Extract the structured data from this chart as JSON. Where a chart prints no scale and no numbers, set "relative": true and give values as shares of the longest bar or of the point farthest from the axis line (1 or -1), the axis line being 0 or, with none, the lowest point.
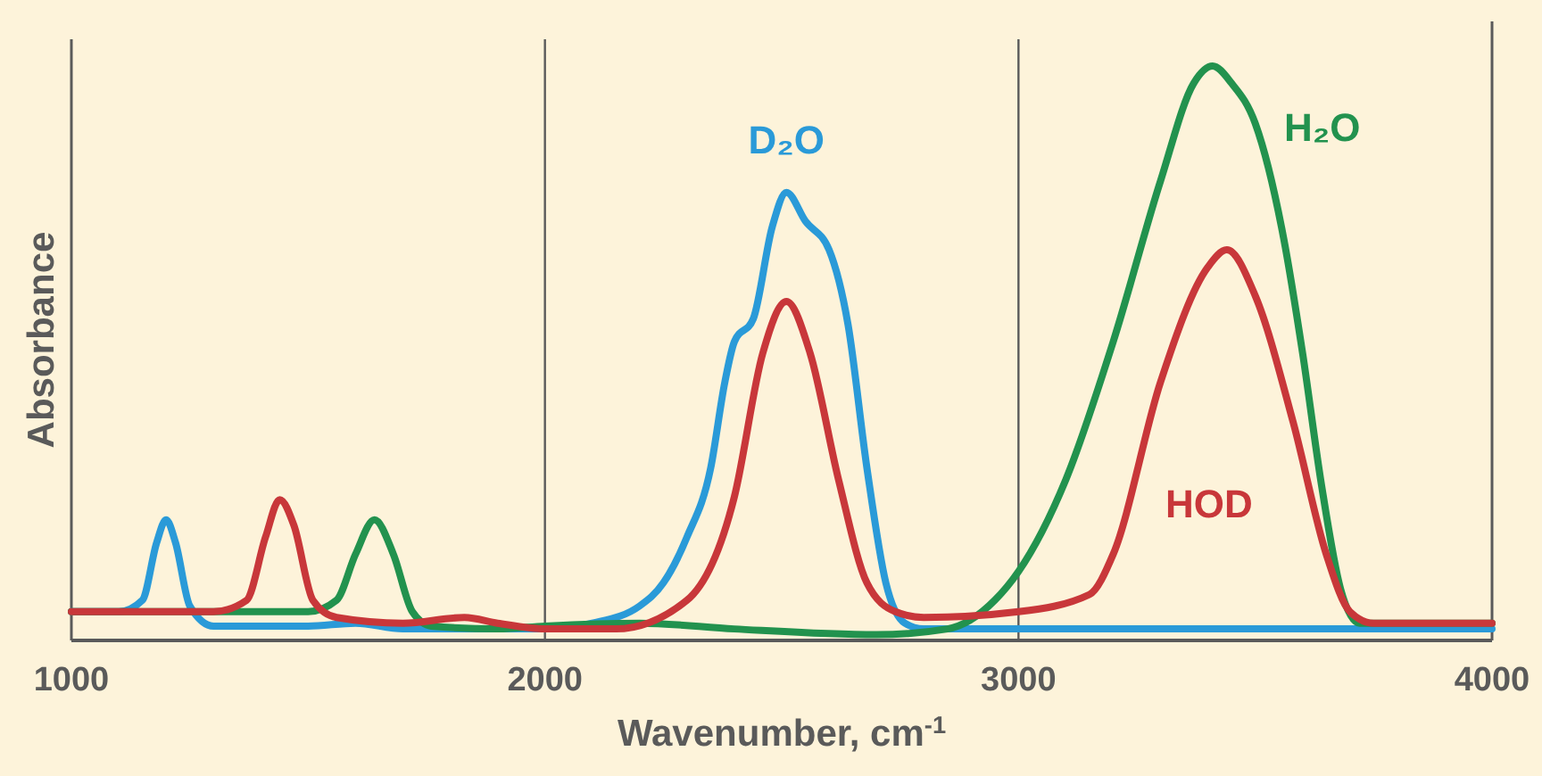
{
  "chart_data": {
    "type": "line",
    "xlabel": "Wavenumber, cm$^{-1}$",
    "ylabel": "Absorbance",
    "relative": true,
    "xlim": [
      1000,
      4000
    ],
    "xticks": [
      1000,
      2000,
      3000,
      4000
    ],
    "grid": "x",
    "series": [
      {
        "name": "D₂O",
        "color": "#2a9ad8",
        "x": [
          1000,
          1100,
          1150,
          1180,
          1200,
          1220,
          1250,
          1300,
          1500,
          1600,
          1700,
          1900,
          2000,
          2100,
          2200,
          2250,
          2300,
          2350,
          2380,
          2400,
          2440,
          2480,
          2510,
          2550,
          2600,
          2640,
          2680,
          2720,
          2760,
          2800,
          3000,
          4000
        ],
        "values": [
          0.05,
          0.05,
          0.07,
          0.17,
          0.21,
          0.17,
          0.06,
          0.025,
          0.025,
          0.03,
          0.02,
          0.02,
          0.02,
          0.03,
          0.06,
          0.1,
          0.18,
          0.3,
          0.45,
          0.52,
          0.56,
          0.72,
          0.78,
          0.73,
          0.68,
          0.55,
          0.3,
          0.1,
          0.03,
          0.02,
          0.02,
          0.02
        ]
      },
      {
        "name": "H₂O",
        "color": "#22924e",
        "x": [
          1000,
          1500,
          1560,
          1600,
          1640,
          1680,
          1720,
          1760,
          1900,
          2000,
          2200,
          2400,
          2700,
          2850,
          2950,
          3000,
          3100,
          3200,
          3300,
          3370,
          3410,
          3450,
          3500,
          3560,
          3600,
          3640,
          3680,
          3720,
          4000
        ],
        "values": [
          0.05,
          0.05,
          0.07,
          0.15,
          0.21,
          0.15,
          0.05,
          0.025,
          0.02,
          0.025,
          0.03,
          0.02,
          0.01,
          0.02,
          0.07,
          0.12,
          0.28,
          0.52,
          0.8,
          0.97,
          1,
          0.97,
          0.9,
          0.7,
          0.5,
          0.27,
          0.09,
          0.03,
          0.03
        ]
      },
      {
        "name": "HOD",
        "color": "#c8373a",
        "x": [
          1000,
          1300,
          1370,
          1410,
          1440,
          1470,
          1510,
          1560,
          1700,
          1830,
          1900,
          2000,
          2150,
          2300,
          2400,
          2460,
          2510,
          2560,
          2620,
          2680,
          2740,
          2800,
          3000,
          3150,
          3200,
          3300,
          3400,
          3440,
          3500,
          3580,
          3650,
          3700,
          3750,
          4000
        ],
        "values": [
          0.05,
          0.05,
          0.07,
          0.18,
          0.245,
          0.2,
          0.07,
          0.04,
          0.03,
          0.04,
          0.03,
          0.02,
          0.02,
          0.07,
          0.25,
          0.5,
          0.59,
          0.5,
          0.28,
          0.1,
          0.05,
          0.04,
          0.05,
          0.08,
          0.15,
          0.45,
          0.65,
          0.68,
          0.6,
          0.38,
          0.15,
          0.05,
          0.03,
          0.03
        ]
      }
    ]
  }
}
